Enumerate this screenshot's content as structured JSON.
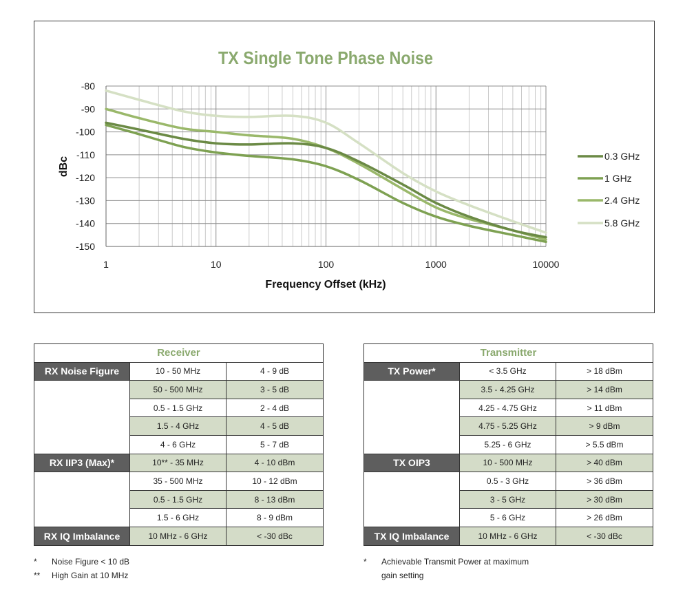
{
  "chart_data": {
    "type": "line",
    "title": "TX Single Tone Phase Noise",
    "xlabel": "Frequency Offset (kHz)",
    "ylabel": "dBc",
    "x_scale": "log",
    "xlim": [
      1,
      10000
    ],
    "ylim": [
      -150,
      -80
    ],
    "x_ticks": [
      1,
      10,
      100,
      1000,
      10000
    ],
    "x_tick_labels": [
      "1",
      "10",
      "100",
      "1000",
      "10000"
    ],
    "y_ticks": [
      -80,
      -90,
      -100,
      -110,
      -120,
      -130,
      -140,
      -150
    ],
    "y_tick_labels": [
      "-80",
      "-90",
      "-100",
      "-110",
      "-120",
      "-130",
      "-140",
      "-150"
    ],
    "grid": true,
    "legend_position": "right",
    "x": [
      1,
      2,
      5,
      10,
      20,
      50,
      100,
      200,
      500,
      1000,
      2000,
      5000,
      10000
    ],
    "series": [
      {
        "name": "0.3 GHz",
        "color": "#6b8a45",
        "values": [
          -96,
          -99,
          -103,
          -105,
          -105.5,
          -105,
          -107,
          -113,
          -123,
          -131,
          -137,
          -143,
          -146
        ]
      },
      {
        "name": "1 GHz",
        "color": "#7ea152",
        "values": [
          -97,
          -101,
          -106.5,
          -109,
          -110.5,
          -112,
          -115,
          -121,
          -131,
          -137,
          -141,
          -145,
          -148
        ]
      },
      {
        "name": "2.4 GHz",
        "color": "#9ab86a",
        "values": [
          -90,
          -94,
          -98.5,
          -100,
          -101.5,
          -103,
          -107,
          -114,
          -125,
          -133,
          -138,
          -143,
          -147
        ]
      },
      {
        "name": "5.8 GHz",
        "color": "#d5e0c4",
        "values": [
          -82,
          -86,
          -91,
          -93,
          -93.5,
          -93,
          -96,
          -105,
          -118,
          -126,
          -132,
          -139,
          -144
        ]
      }
    ]
  },
  "receiver": {
    "title": "Receiver",
    "groups": [
      {
        "label": "RX Noise Figure",
        "rows": [
          {
            "range": "10 - 50 MHz",
            "value": "4 - 9 dB"
          },
          {
            "range": "50 - 500 MHz",
            "value": "3 - 5 dB"
          },
          {
            "range": "0.5 - 1.5 GHz",
            "value": "2 - 4 dB"
          },
          {
            "range": "1.5 - 4 GHz",
            "value": "4 - 5 dB"
          },
          {
            "range": "4 - 6 GHz",
            "value": "5 - 7 dB"
          }
        ]
      },
      {
        "label": "RX IIP3 (Max)*",
        "rows": [
          {
            "range": "10** - 35 MHz",
            "value": "4 - 10 dBm"
          },
          {
            "range": "35 - 500 MHz",
            "value": "10 - 12 dBm"
          },
          {
            "range": "0.5 - 1.5 GHz",
            "value": "8 - 13 dBm"
          },
          {
            "range": "1.5 - 6 GHz",
            "value": "8 - 9 dBm"
          }
        ]
      },
      {
        "label": "RX IQ Imbalance",
        "rows": [
          {
            "range": "10 MHz - 6 GHz",
            "value": "< -30 dBc"
          }
        ]
      }
    ],
    "notes": [
      {
        "mark": "*",
        "text": "Noise Figure < 10 dB"
      },
      {
        "mark": "**",
        "text": "High Gain at 10 MHz"
      }
    ]
  },
  "transmitter": {
    "title": "Transmitter",
    "groups": [
      {
        "label": "TX Power*",
        "rows": [
          {
            "range": "< 3.5 GHz",
            "value": "> 18 dBm"
          },
          {
            "range": "3.5 - 4.25  GHz",
            "value": "> 14 dBm"
          },
          {
            "range": "4.25 - 4.75 GHz",
            "value": "> 11 dBm"
          },
          {
            "range": "4.75 - 5.25 GHz",
            "value": "> 9 dBm"
          },
          {
            "range": "5.25 - 6 GHz",
            "value": "> 5.5 dBm"
          }
        ]
      },
      {
        "label": "TX OIP3",
        "rows": [
          {
            "range": "10 - 500 MHz",
            "value": "> 40 dBm"
          },
          {
            "range": "0.5 - 3 GHz",
            "value": "> 36 dBm"
          },
          {
            "range": "3 - 5 GHz",
            "value": "> 30 dBm"
          },
          {
            "range": "5 - 6 GHz",
            "value": "> 26 dBm"
          }
        ]
      },
      {
        "label": "TX IQ Imbalance",
        "rows": [
          {
            "range": "10 MHz - 6 GHz",
            "value": "< -30 dBc"
          }
        ]
      }
    ],
    "notes": [
      {
        "mark": "*",
        "text": "Achievable Transmit Power at maximum gain setting"
      }
    ]
  }
}
